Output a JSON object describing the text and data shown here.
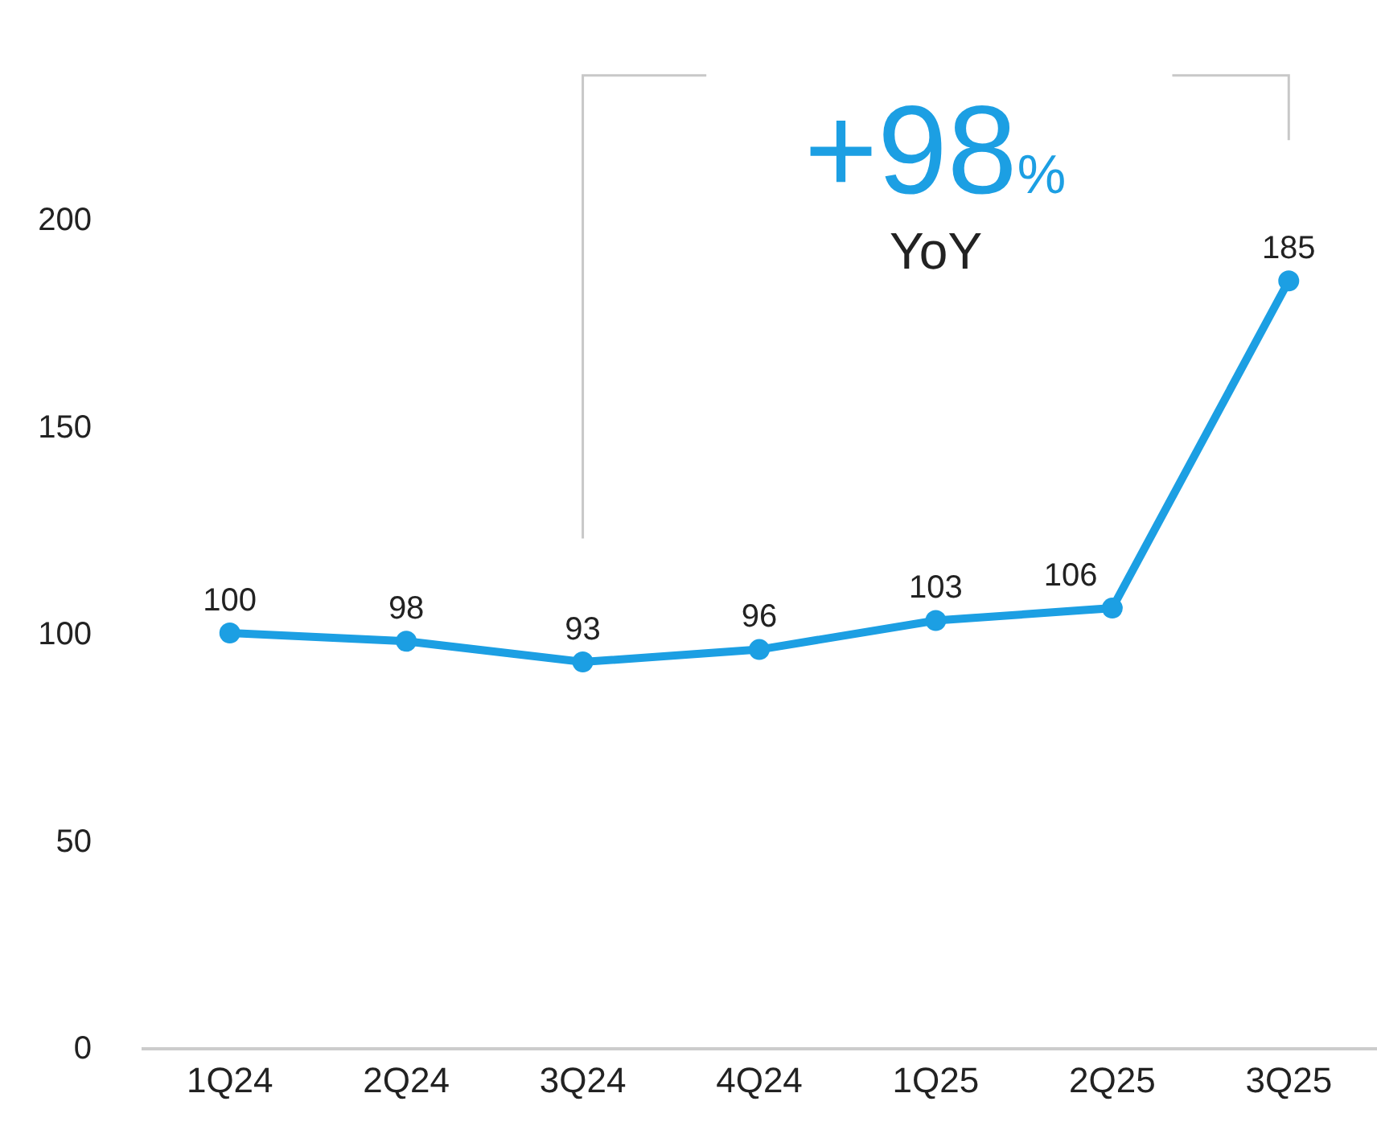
{
  "chart_data": {
    "type": "line",
    "categories": [
      "1Q24",
      "2Q24",
      "3Q24",
      "4Q24",
      "1Q25",
      "2Q25",
      "3Q25"
    ],
    "series": [
      {
        "color": "#1c9fe3",
        "values": [
          100,
          98,
          93,
          96,
          103,
          106,
          185
        ]
      }
    ],
    "data_labels": true,
    "marker": "circle",
    "line_style": "solid",
    "ylim": [
      0,
      200
    ],
    "yticks": [
      0,
      50,
      100,
      150,
      200
    ],
    "annotations": [
      "+98%",
      "YoY"
    ]
  }
}
